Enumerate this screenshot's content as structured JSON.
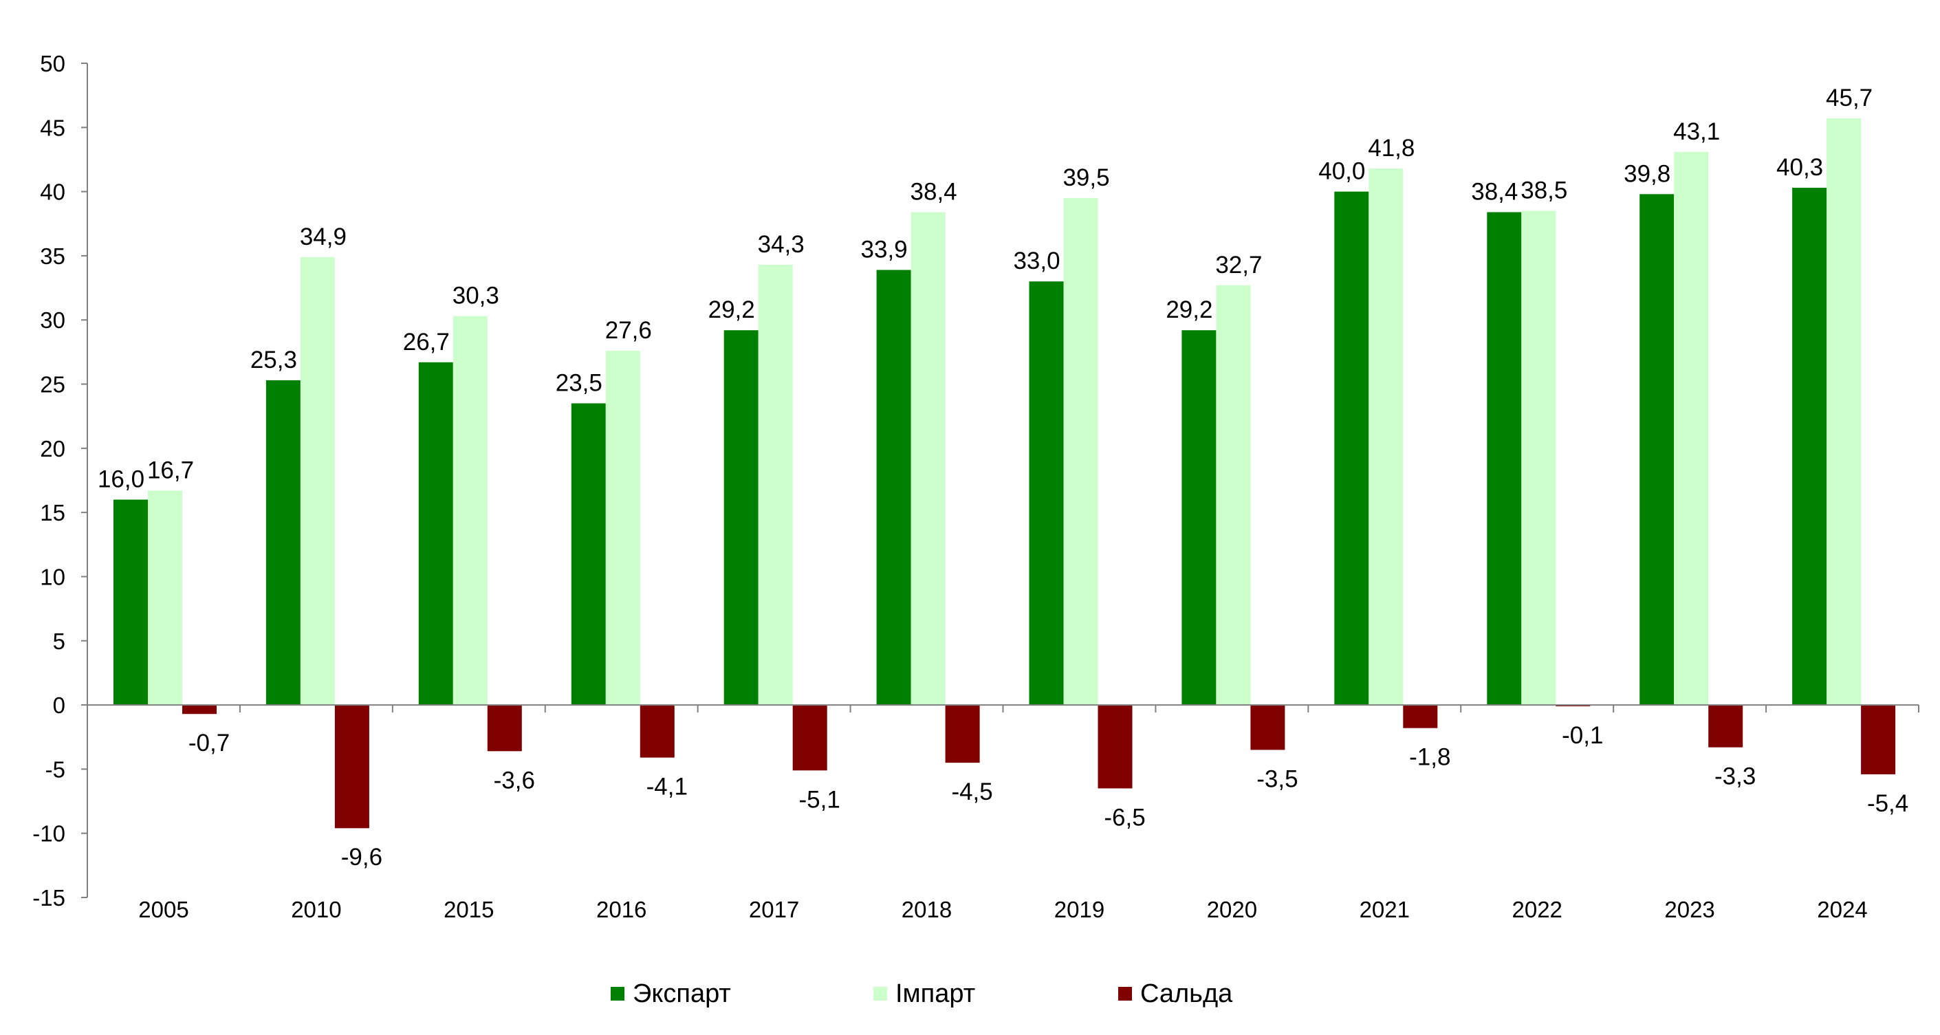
{
  "chart_data": {
    "type": "bar",
    "categories": [
      "2005",
      "2010",
      "2015",
      "2016",
      "2017",
      "2018",
      "2019",
      "2020",
      "2021",
      "2022",
      "2023",
      "2024"
    ],
    "series": [
      {
        "name": "Экспарт",
        "color": "#008000",
        "values": [
          16.0,
          25.3,
          26.7,
          23.5,
          29.2,
          33.9,
          33.0,
          29.2,
          40.0,
          38.4,
          39.8,
          40.3
        ],
        "labels": [
          "16,0",
          "25,3",
          "26,7",
          "23,5",
          "29,2",
          "33,9",
          "33,0",
          "29,2",
          "40,0",
          "38,4",
          "39,8",
          "40,3"
        ]
      },
      {
        "name": "Імпарт",
        "color": "#CCFFCC",
        "values": [
          16.7,
          34.9,
          30.3,
          27.6,
          34.3,
          38.4,
          39.5,
          32.7,
          41.8,
          38.5,
          43.1,
          45.7
        ],
        "labels": [
          "16,7",
          "34,9",
          "30,3",
          "27,6",
          "34,3",
          "38,4",
          "39,5",
          "32,7",
          "41,8",
          "38,5",
          "43,1",
          "45,7"
        ]
      },
      {
        "name": "Сальда",
        "color": "#800000",
        "values": [
          -0.7,
          -9.6,
          -3.6,
          -4.1,
          -5.1,
          -4.5,
          -6.5,
          -3.5,
          -1.8,
          -0.1,
          -3.3,
          -5.4
        ],
        "labels": [
          "-0,7",
          "-9,6",
          "-3,6",
          "-4,1",
          "-5,1",
          "-4,5",
          "-6,5",
          "-3,5",
          "-1,8",
          "-0,1",
          "-3,3",
          "-5,4"
        ]
      }
    ],
    "ylim": [
      -15,
      50
    ],
    "yticks": [
      50,
      45,
      40,
      35,
      30,
      25,
      20,
      15,
      10,
      5,
      0,
      -5,
      -10,
      -15
    ],
    "title": "",
    "xlabel": "",
    "ylabel": "",
    "grid": false,
    "legend_position": "bottom"
  }
}
